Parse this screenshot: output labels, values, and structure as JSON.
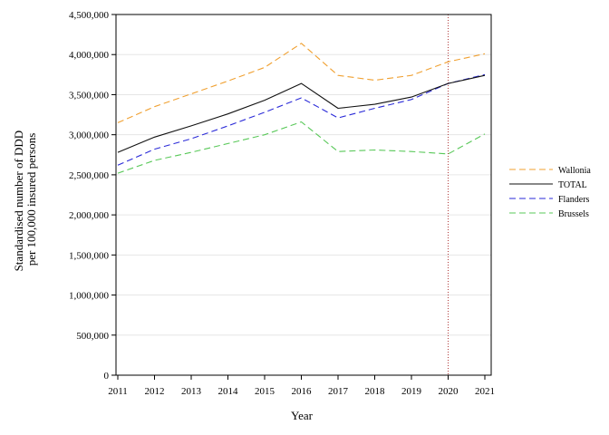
{
  "chart_data": {
    "type": "line",
    "xlabel": "Year",
    "ylabel_lines": [
      "Standardised number of DDD",
      "per 100,000 insured persons"
    ],
    "x": [
      2011,
      2012,
      2013,
      2014,
      2015,
      2016,
      2017,
      2018,
      2019,
      2020,
      2021
    ],
    "x_tick_labels": [
      "2011",
      "2012",
      "2013",
      "2014",
      "2015",
      "2016",
      "2017",
      "2018",
      "2019",
      "2020",
      "2021"
    ],
    "ylim": [
      0,
      4500000
    ],
    "y_ticks": [
      0,
      500000,
      1000000,
      1500000,
      2000000,
      2500000,
      3000000,
      3500000,
      4000000,
      4500000
    ],
    "y_tick_labels": [
      "0",
      "500,000",
      "1,000,000",
      "1,500,000",
      "2,000,000",
      "2,500,000",
      "3,000,000",
      "3,500,000",
      "4,000,000",
      "4,500,000"
    ],
    "grid": "horizontal",
    "legend_position": "right",
    "reference_line": {
      "x": 2020,
      "color": "#b03a3a",
      "style": "dotted"
    },
    "series": [
      {
        "name": "Wallonia",
        "color": "#f0a030",
        "dash": "dashed",
        "values": [
          3150000,
          3350000,
          3510000,
          3670000,
          3840000,
          4140000,
          3740000,
          3680000,
          3740000,
          3910000,
          4010000
        ]
      },
      {
        "name": "TOTAL",
        "color": "#111111",
        "dash": "solid",
        "values": [
          2780000,
          2970000,
          3110000,
          3260000,
          3430000,
          3640000,
          3330000,
          3380000,
          3470000,
          3640000,
          3740000
        ]
      },
      {
        "name": "Flanders",
        "color": "#2a2ad8",
        "dash": "dashed",
        "values": [
          2620000,
          2820000,
          2950000,
          3110000,
          3280000,
          3460000,
          3210000,
          3330000,
          3440000,
          3640000,
          3750000
        ]
      },
      {
        "name": "Brussels",
        "color": "#58c858",
        "dash": "dashed",
        "values": [
          2520000,
          2680000,
          2780000,
          2890000,
          3000000,
          3160000,
          2790000,
          2810000,
          2790000,
          2760000,
          3010000
        ]
      }
    ]
  }
}
